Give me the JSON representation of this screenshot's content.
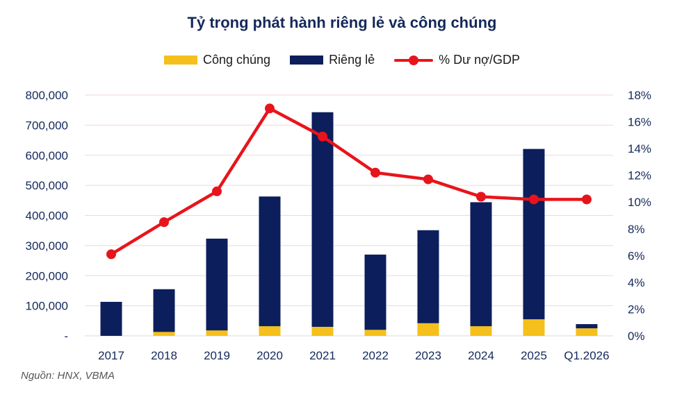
{
  "title": "Tỷ trọng phát hành riêng lẻ và công chúng",
  "source": "Nguồn: HNX, VBMA",
  "colors": {
    "public": "#f5c01b",
    "private": "#0c1f5c",
    "line": "#e8141b",
    "grid": "#f1d7d7",
    "axis_text": "#14285a"
  },
  "legend": {
    "public": "Công chúng",
    "private": "Riêng lẻ",
    "line": "% Dư nợ/GDP"
  },
  "chart_data": {
    "type": "bar",
    "stacked": true,
    "categories": [
      "2017",
      "2018",
      "2019",
      "2020",
      "2021",
      "2022",
      "2023",
      "2024",
      "2025",
      "Q1.2026"
    ],
    "series": [
      {
        "name": "Công chúng",
        "type": "bar",
        "axis": "left",
        "values": [
          0,
          13000,
          18000,
          32000,
          30000,
          20000,
          42000,
          32000,
          55000,
          25000
        ]
      },
      {
        "name": "Riêng lẻ",
        "type": "bar",
        "axis": "left",
        "values": [
          113000,
          142000,
          305000,
          431000,
          713000,
          250000,
          309000,
          412000,
          566000,
          14000
        ]
      },
      {
        "name": "% Dư nợ/GDP",
        "type": "line",
        "axis": "right",
        "values": [
          6.1,
          8.5,
          10.8,
          17.0,
          14.9,
          12.2,
          11.7,
          10.4,
          10.2,
          10.2
        ]
      }
    ],
    "y_left": {
      "min": 0,
      "max": 800000,
      "ticks": [
        0,
        100000,
        200000,
        300000,
        400000,
        500000,
        600000,
        700000,
        800000
      ],
      "tick_labels": [
        "-",
        "100,000",
        "200,000",
        "300,000",
        "400,000",
        "500,000",
        "600,000",
        "700,000",
        "800,000"
      ]
    },
    "y_right": {
      "min": 0,
      "max": 18,
      "ticks": [
        0,
        2,
        4,
        6,
        8,
        10,
        12,
        14,
        16,
        18
      ],
      "tick_labels": [
        "0%",
        "2%",
        "4%",
        "6%",
        "8%",
        "10%",
        "12%",
        "14%",
        "16%",
        "18%"
      ]
    },
    "grid": true,
    "legend_position": "top-center"
  }
}
